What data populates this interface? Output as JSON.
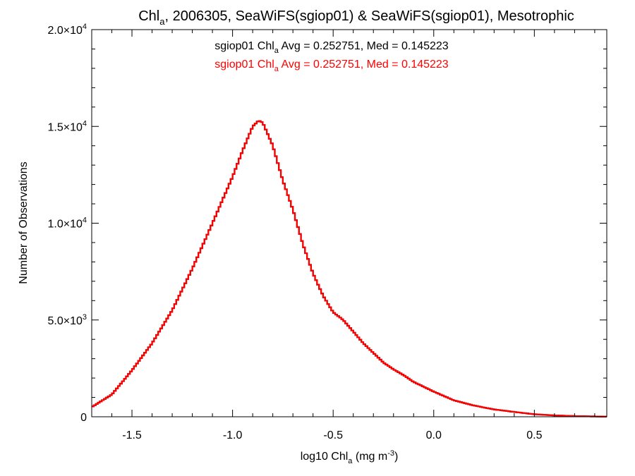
{
  "chart_data": {
    "type": "line",
    "style": "step-histogram",
    "title": {
      "prefix": "Chl",
      "sub": "a",
      "suffix": ", 2006305, SeaWiFS(sgiop01) & SeaWiFS(sgiop01), Mesotrophic"
    },
    "xlabel": {
      "prefix": "log10 Chl",
      "sub": "a",
      "mid": " (mg m",
      "sup": "-3",
      "suffix": ")"
    },
    "ylabel": "Number of Observations",
    "xlim": [
      -1.7,
      0.86
    ],
    "ylim": [
      0,
      20000
    ],
    "x_ticks": [
      {
        "value": -1.5,
        "label": "-1.5"
      },
      {
        "value": -1.0,
        "label": "-1.0"
      },
      {
        "value": -0.5,
        "label": "-0.5"
      },
      {
        "value": 0.0,
        "label": "0.0"
      },
      {
        "value": 0.5,
        "label": "0.5"
      }
    ],
    "x_minor_step": 0.1,
    "y_ticks": [
      {
        "value": 0,
        "mant": "0",
        "exp": ""
      },
      {
        "value": 5000,
        "mant": "5.0×10",
        "exp": "3"
      },
      {
        "value": 10000,
        "mant": "1.0×10",
        "exp": "4"
      },
      {
        "value": 15000,
        "mant": "1.5×10",
        "exp": "4"
      },
      {
        "value": 20000,
        "mant": "2.0×10",
        "exp": "4"
      }
    ],
    "y_minor_step": 1000,
    "annotations": [
      {
        "prefix": "sgiop01 Chl",
        "sub": "a",
        "suffix": " Avg = 0.252751, Med = 0.145223",
        "color": "#000000"
      },
      {
        "prefix": "sgiop01 Chl",
        "sub": "a",
        "suffix": " Avg = 0.252751, Med = 0.145223",
        "color": "#ff0000"
      }
    ],
    "grid": false,
    "bin_width": 0.01,
    "series": [
      {
        "color": "#000000",
        "x": [
          -1.7,
          -1.6,
          -1.5,
          -1.4,
          -1.3,
          -1.2,
          -1.1,
          -1.0,
          -0.95,
          -0.9,
          -0.87,
          -0.85,
          -0.8,
          -0.75,
          -0.7,
          -0.65,
          -0.6,
          -0.55,
          -0.5,
          -0.45,
          -0.4,
          -0.35,
          -0.3,
          -0.25,
          -0.2,
          -0.15,
          -0.1,
          -0.05,
          0.0,
          0.1,
          0.2,
          0.3,
          0.4,
          0.5,
          0.6,
          0.7,
          0.86
        ],
        "y": [
          500,
          1150,
          2400,
          3800,
          5500,
          7650,
          10000,
          12400,
          13750,
          15000,
          15300,
          15200,
          14000,
          12200,
          10700,
          8900,
          7400,
          6250,
          5400,
          5000,
          4400,
          3800,
          3300,
          2800,
          2450,
          2150,
          1800,
          1550,
          1300,
          850,
          580,
          380,
          250,
          130,
          70,
          35,
          5
        ]
      },
      {
        "color": "#ff0000",
        "x": [
          -1.7,
          -1.6,
          -1.5,
          -1.4,
          -1.3,
          -1.2,
          -1.1,
          -1.0,
          -0.95,
          -0.9,
          -0.87,
          -0.85,
          -0.8,
          -0.75,
          -0.7,
          -0.65,
          -0.6,
          -0.55,
          -0.5,
          -0.45,
          -0.4,
          -0.35,
          -0.3,
          -0.25,
          -0.2,
          -0.15,
          -0.1,
          -0.05,
          0.0,
          0.1,
          0.2,
          0.3,
          0.4,
          0.5,
          0.6,
          0.7,
          0.86
        ],
        "y": [
          500,
          1150,
          2400,
          3800,
          5500,
          7650,
          10000,
          12400,
          13750,
          15000,
          15300,
          15200,
          14000,
          12200,
          10700,
          8900,
          7400,
          6250,
          5400,
          5000,
          4400,
          3800,
          3300,
          2800,
          2450,
          2150,
          1800,
          1550,
          1300,
          850,
          580,
          380,
          250,
          130,
          70,
          35,
          5
        ]
      }
    ]
  }
}
